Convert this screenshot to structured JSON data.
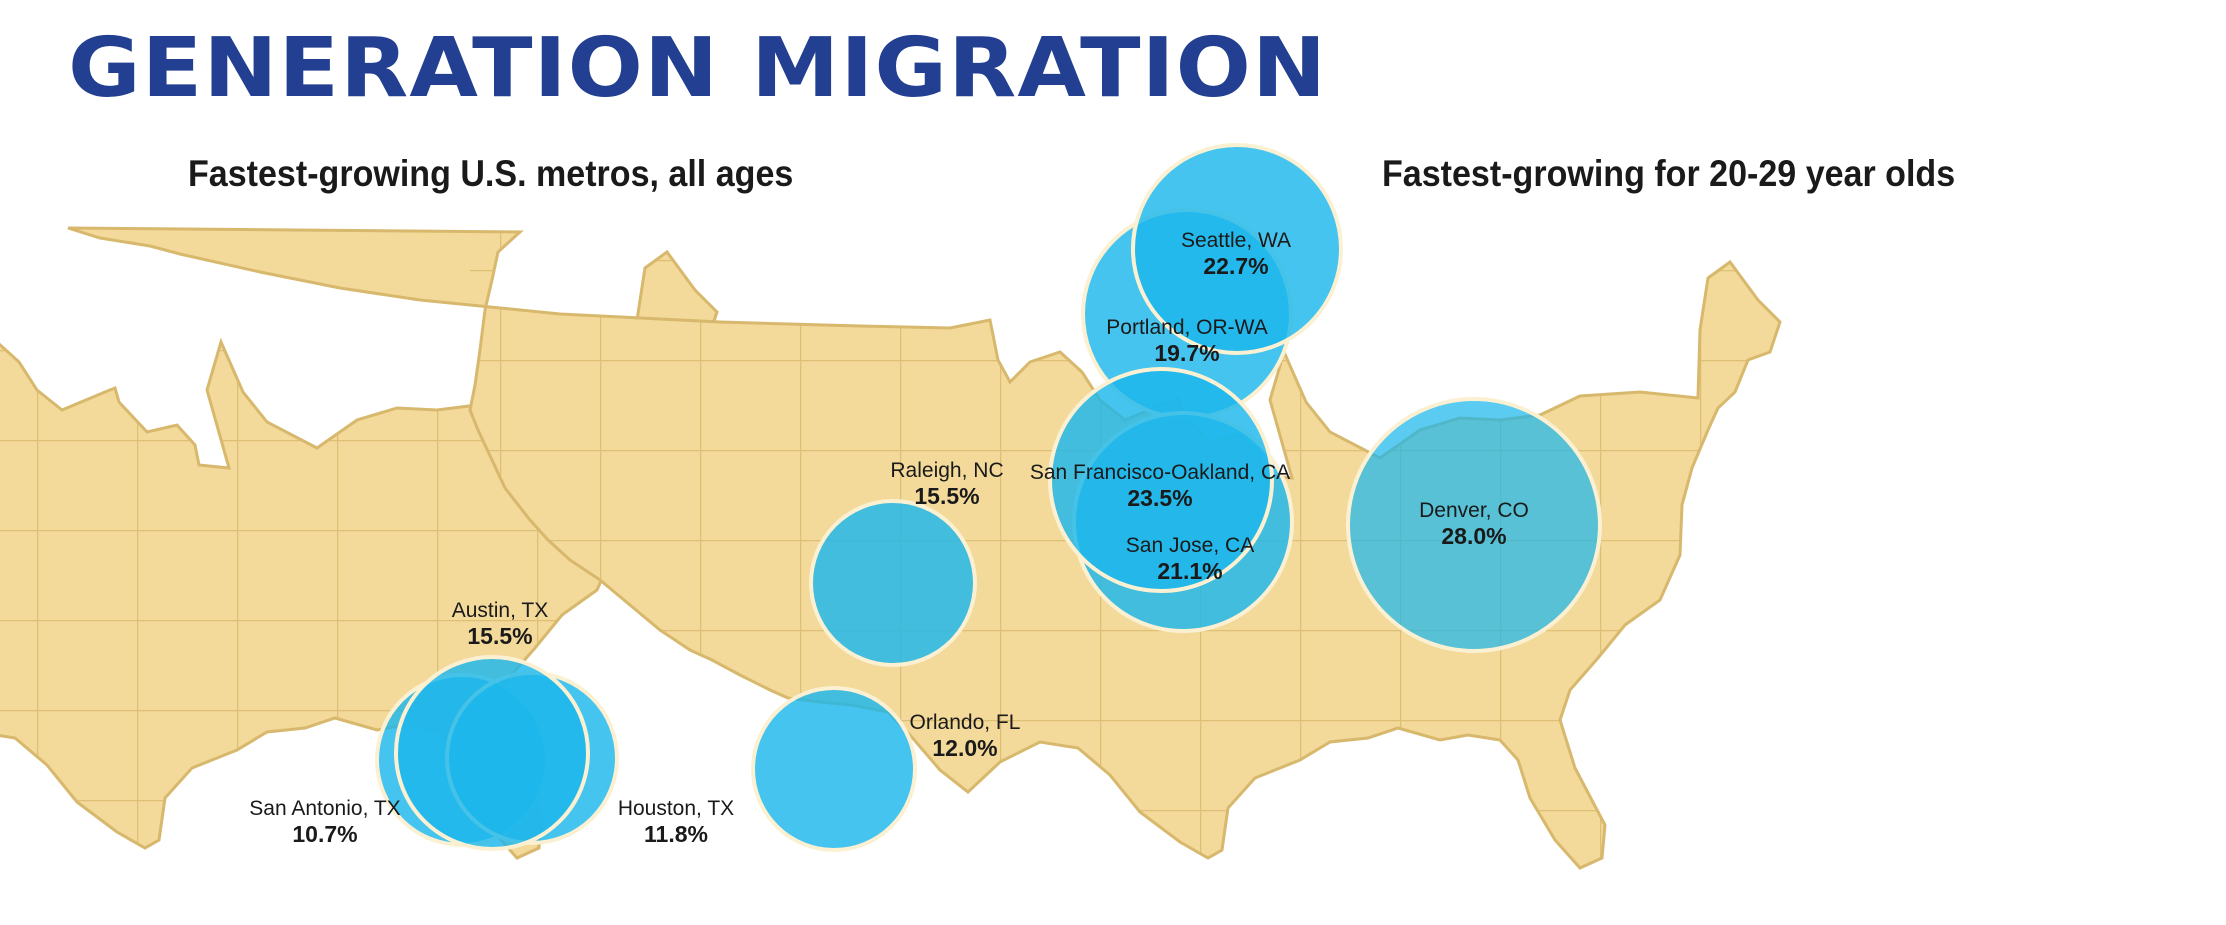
{
  "title": "GENERATION MIGRATION",
  "colors": {
    "title": "#233f91",
    "land": "#f3d99a",
    "land_border": "#d7b86c",
    "bubble_left": "#1cb7ec",
    "bubble_right": "#1cb7ec",
    "bubble_stroke": "#fbf1d2"
  },
  "maps": [
    {
      "title": "Fastest-growing U.S. metros, all ages",
      "metros": [
        {
          "city": "Raleigh, NC",
          "value": "15.5%"
        },
        {
          "city": "Austin, TX",
          "value": "15.5%"
        },
        {
          "city": "San Antonio, TX",
          "value": "10.7%"
        },
        {
          "city": "Houston, TX",
          "value": "11.8%"
        },
        {
          "city": "Orlando, FL",
          "value": "12.0%"
        }
      ]
    },
    {
      "title": "Fastest-growing for 20-29 year olds",
      "metros": [
        {
          "city": "Seattle, WA",
          "value": "22.7%"
        },
        {
          "city": "Portland, OR-WA",
          "value": "19.7%"
        },
        {
          "city": "San Francisco-Oakland, CA",
          "value": "23.5%"
        },
        {
          "city": "San Jose, CA",
          "value": "21.1%"
        },
        {
          "city": "Denver, CO",
          "value": "28.0%"
        }
      ]
    }
  ]
}
